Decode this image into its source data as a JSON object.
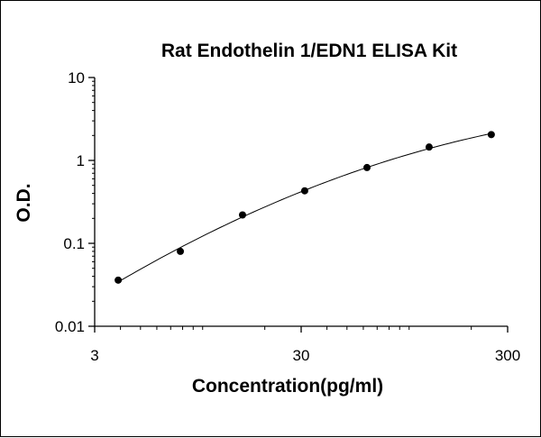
{
  "chart_data": {
    "type": "scatter",
    "title": "Rat Endothelin 1/EDN1 ELISA Kit",
    "xlabel": "Concentration(pg/ml)",
    "ylabel": "O.D.",
    "x_scale": "log",
    "y_scale": "log",
    "xlim": [
      3,
      300
    ],
    "ylim": [
      0.01,
      10
    ],
    "x_ticks": [
      {
        "value": 3,
        "label": "3"
      },
      {
        "value": 30,
        "label": "30"
      },
      {
        "value": 300,
        "label": "300"
      }
    ],
    "y_ticks": [
      {
        "value": 0.01,
        "label": "0.01"
      },
      {
        "value": 0.1,
        "label": "0.1"
      },
      {
        "value": 1,
        "label": "1"
      },
      {
        "value": 10,
        "label": "10"
      }
    ],
    "grid": false,
    "legend": "none",
    "fit_curve": true,
    "series": [
      {
        "x": [
          3.9,
          7.8,
          15.6,
          31.2,
          62.5,
          125,
          250
        ],
        "y": [
          0.036,
          0.08,
          0.22,
          0.43,
          0.82,
          1.45,
          2.05
        ]
      }
    ],
    "colors": {
      "marker": "#000000",
      "line": "#000000",
      "axis": "#000000"
    }
  }
}
